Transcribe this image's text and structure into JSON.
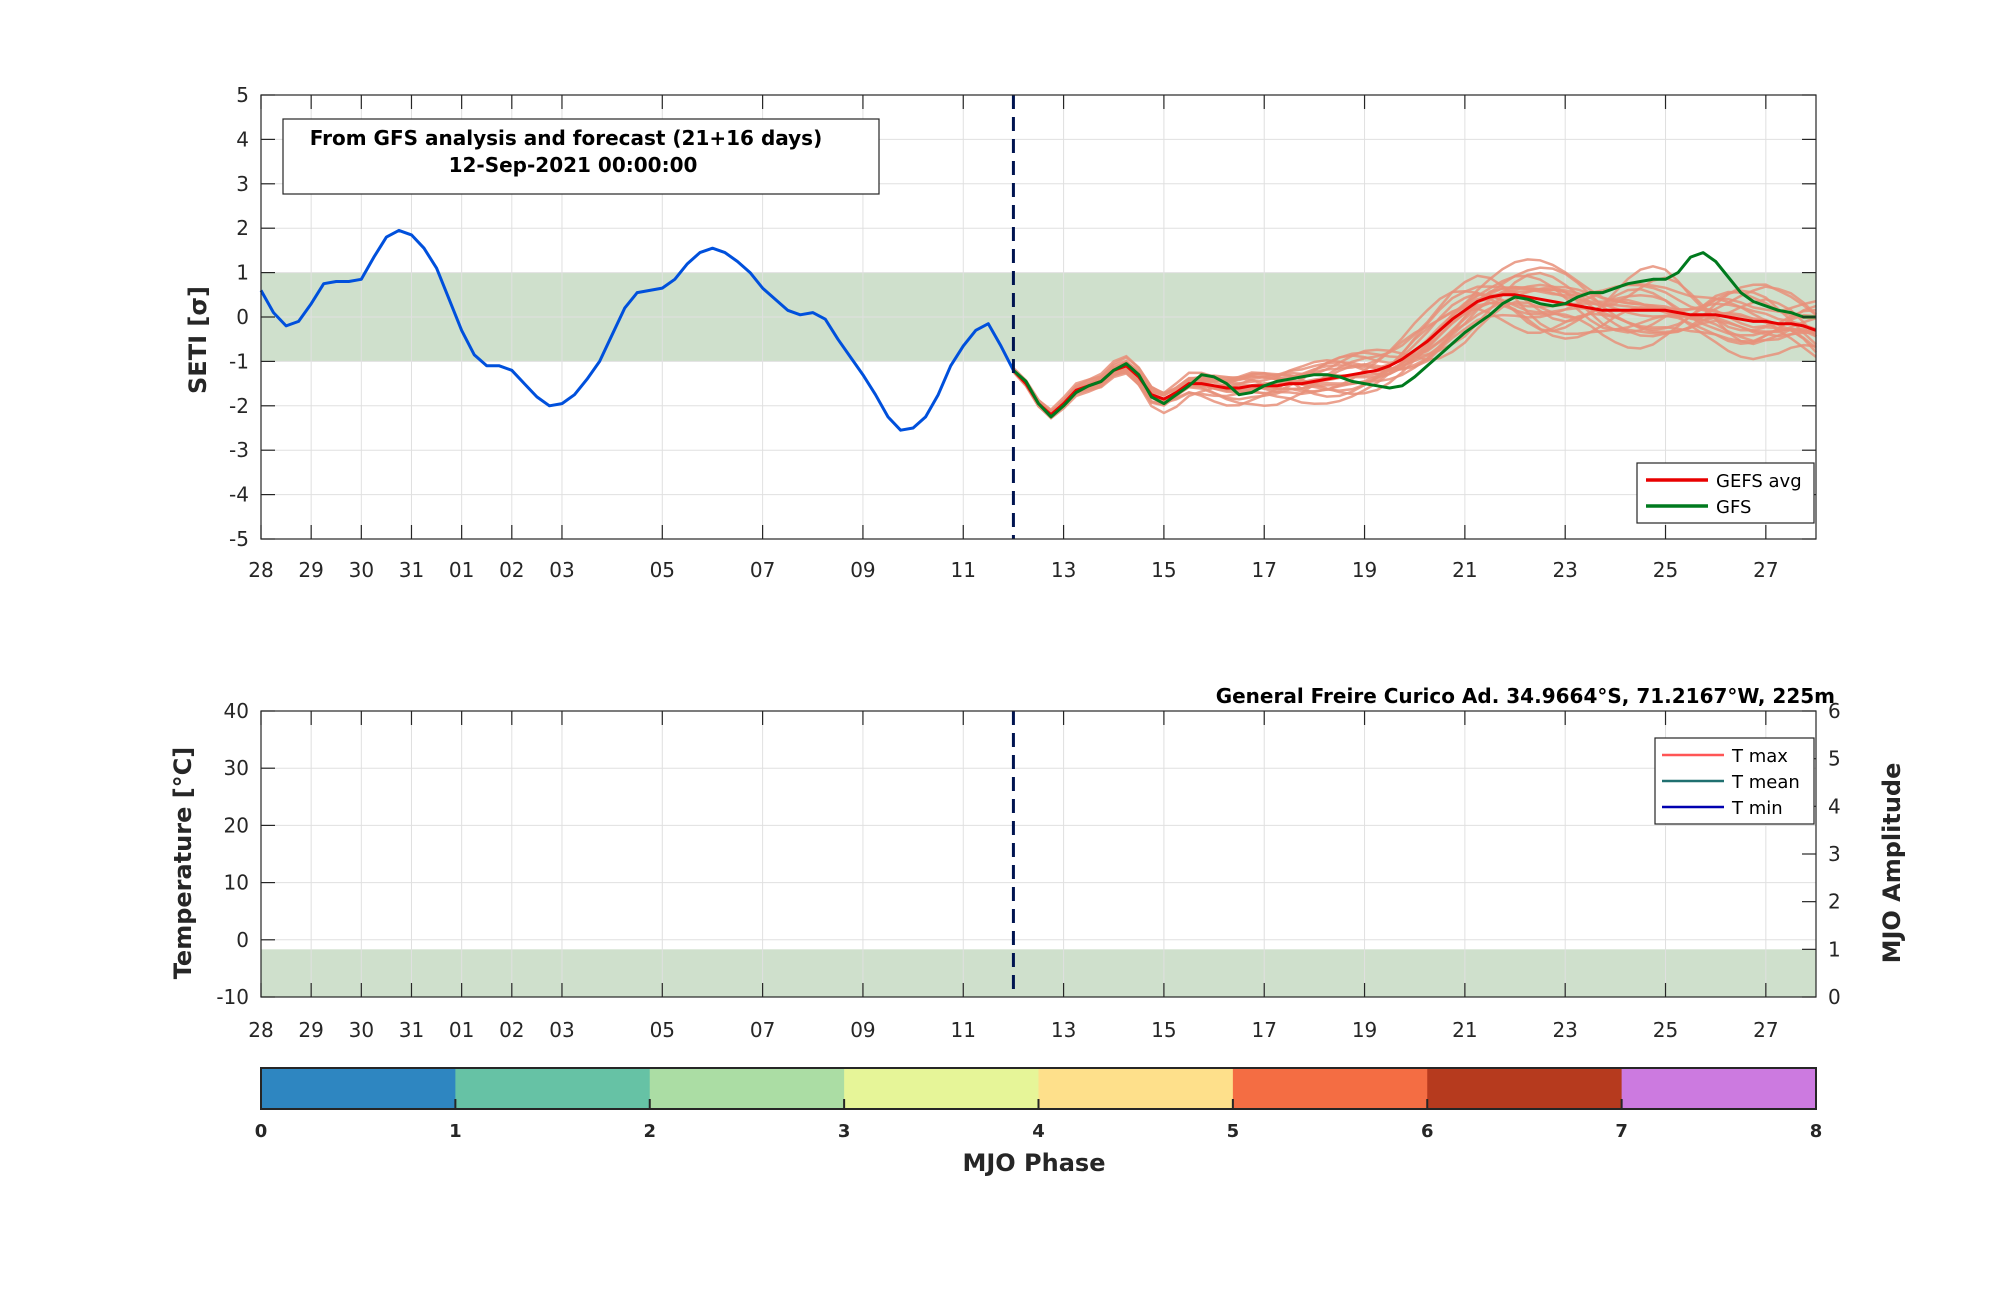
{
  "info_box": {
    "line1": "From GFS analysis and forecast (21+16 days)",
    "line2": "12-Sep-2021 00:00:00"
  },
  "station_title": "General Freire Curico Ad. 34.9664°S, 71.2167°W, 225m",
  "colors": {
    "analysis": "#0050dc",
    "gfs": "#007a1e",
    "gefs_avg": "#e80000",
    "ensemble": "#e8917a",
    "band": "#cfe0cc",
    "cutoff": "#001450",
    "tmax": "#ff5555",
    "tmean": "#207070",
    "tmin": "#0000b0"
  },
  "chart_data": [
    {
      "type": "line",
      "ylabel": "SETI [σ]",
      "ylim": [
        -5,
        5
      ],
      "yticks": [
        -5,
        -4,
        -3,
        -2,
        -1,
        0,
        1,
        2,
        3,
        4,
        5
      ],
      "xlim": [
        0,
        31
      ],
      "xticks": [
        {
          "x": 0,
          "label": "28"
        },
        {
          "x": 1,
          "label": "29"
        },
        {
          "x": 2,
          "label": "30"
        },
        {
          "x": 3,
          "label": "31"
        },
        {
          "x": 4,
          "label": "01"
        },
        {
          "x": 5,
          "label": "02"
        },
        {
          "x": 6,
          "label": "03"
        },
        {
          "x": 8,
          "label": "05"
        },
        {
          "x": 10,
          "label": "07"
        },
        {
          "x": 12,
          "label": "09"
        },
        {
          "x": 14,
          "label": "11"
        },
        {
          "x": 16,
          "label": "13"
        },
        {
          "x": 18,
          "label": "15"
        },
        {
          "x": 20,
          "label": "17"
        },
        {
          "x": 22,
          "label": "19"
        },
        {
          "x": 24,
          "label": "21"
        },
        {
          "x": 26,
          "label": "23"
        },
        {
          "x": 28,
          "label": "25"
        },
        {
          "x": 30,
          "label": "27"
        }
      ],
      "grid": true,
      "band": [
        -1,
        1
      ],
      "forecast_start_x": 15,
      "legend": {
        "position": "lower-right",
        "entries": [
          "GEFS avg",
          "GFS"
        ]
      },
      "series": [
        {
          "name": "",
          "role": "analysis",
          "x": [
            0,
            0.25,
            0.5,
            0.75,
            1,
            1.25,
            1.5,
            1.75,
            2,
            2.25,
            2.5,
            2.75,
            3,
            3.25,
            3.5,
            3.75,
            4,
            4.25,
            4.5,
            4.75,
            5,
            5.25,
            5.5,
            5.75,
            6,
            6.25,
            6.5,
            6.75,
            7,
            7.25,
            7.5,
            7.75,
            8,
            8.25,
            8.5,
            8.75,
            9,
            9.25,
            9.5,
            9.75,
            10,
            10.25,
            10.5,
            10.75,
            11,
            11.25,
            11.5,
            11.75,
            12,
            12.25,
            12.5,
            12.75,
            13,
            13.25,
            13.5,
            13.75,
            14,
            14.25,
            14.5,
            14.75,
            15
          ],
          "y": [
            0.6,
            0.1,
            -0.2,
            -0.1,
            0.3,
            0.75,
            0.8,
            0.8,
            0.85,
            1.35,
            1.8,
            1.95,
            1.85,
            1.55,
            1.1,
            0.4,
            -0.3,
            -0.85,
            -1.1,
            -1.1,
            -1.2,
            -1.5,
            -1.8,
            -2.0,
            -1.95,
            -1.75,
            -1.4,
            -1.0,
            -0.4,
            0.2,
            0.55,
            0.6,
            0.65,
            0.85,
            1.2,
            1.45,
            1.55,
            1.45,
            1.25,
            1.0,
            0.65,
            0.4,
            0.15,
            0.05,
            0.1,
            -0.05,
            -0.5,
            -0.9,
            -1.3,
            -1.75,
            -2.25,
            -2.55,
            -2.5,
            -2.25,
            -1.75,
            -1.1,
            -0.65,
            -0.3,
            -0.15,
            -0.65,
            -1.2
          ]
        },
        {
          "name": "GFS",
          "role": "gfs",
          "x": [
            15,
            15.25,
            15.5,
            15.75,
            16,
            16.25,
            16.5,
            16.75,
            17,
            17.25,
            17.5,
            17.75,
            18,
            18.25,
            18.5,
            18.75,
            19,
            19.25,
            19.5,
            19.75,
            20,
            20.25,
            20.5,
            20.75,
            21,
            21.25,
            21.5,
            21.75,
            22,
            22.25,
            22.5,
            22.75,
            23,
            23.25,
            23.5,
            23.75,
            24,
            24.25,
            24.5,
            24.75,
            25,
            25.25,
            25.5,
            25.75,
            26,
            26.25,
            26.5,
            26.75,
            27,
            27.25,
            27.5,
            27.75,
            28,
            28.25,
            28.5,
            28.75,
            29,
            29.25,
            29.5,
            29.75,
            30,
            30.25,
            30.5,
            30.75,
            31
          ],
          "y": [
            -1.2,
            -1.45,
            -1.95,
            -2.25,
            -2.0,
            -1.7,
            -1.55,
            -1.45,
            -1.2,
            -1.05,
            -1.3,
            -1.8,
            -1.95,
            -1.75,
            -1.55,
            -1.3,
            -1.35,
            -1.5,
            -1.75,
            -1.7,
            -1.55,
            -1.45,
            -1.4,
            -1.35,
            -1.3,
            -1.3,
            -1.35,
            -1.45,
            -1.5,
            -1.55,
            -1.6,
            -1.55,
            -1.35,
            -1.1,
            -0.85,
            -0.6,
            -0.35,
            -0.15,
            0.05,
            0.3,
            0.45,
            0.4,
            0.3,
            0.25,
            0.3,
            0.45,
            0.55,
            0.55,
            0.65,
            0.75,
            0.8,
            0.85,
            0.85,
            1.0,
            1.35,
            1.45,
            1.25,
            0.9,
            0.55,
            0.35,
            0.25,
            0.15,
            0.1,
            0.0,
            0.0
          ]
        },
        {
          "name": "GEFS avg",
          "role": "gefs_avg",
          "x": [
            15,
            15.25,
            15.5,
            15.75,
            16,
            16.25,
            16.5,
            16.75,
            17,
            17.25,
            17.5,
            17.75,
            18,
            18.25,
            18.5,
            18.75,
            19,
            19.25,
            19.5,
            19.75,
            20,
            20.25,
            20.5,
            20.75,
            21,
            21.25,
            21.5,
            21.75,
            22,
            22.25,
            22.5,
            22.75,
            23,
            23.25,
            23.5,
            23.75,
            24,
            24.25,
            24.5,
            24.75,
            25,
            25.25,
            25.5,
            25.75,
            26,
            26.25,
            26.5,
            26.75,
            27,
            27.25,
            27.5,
            27.75,
            28,
            28.25,
            28.5,
            28.75,
            29,
            29.25,
            29.5,
            29.75,
            30,
            30.25,
            30.5,
            30.75,
            31
          ],
          "y": [
            -1.2,
            -1.5,
            -1.95,
            -2.2,
            -1.95,
            -1.65,
            -1.55,
            -1.45,
            -1.2,
            -1.1,
            -1.35,
            -1.75,
            -1.85,
            -1.7,
            -1.5,
            -1.5,
            -1.55,
            -1.6,
            -1.6,
            -1.55,
            -1.55,
            -1.55,
            -1.5,
            -1.5,
            -1.45,
            -1.4,
            -1.35,
            -1.3,
            -1.25,
            -1.2,
            -1.1,
            -0.95,
            -0.75,
            -0.55,
            -0.3,
            -0.05,
            0.15,
            0.35,
            0.45,
            0.5,
            0.5,
            0.45,
            0.4,
            0.35,
            0.3,
            0.25,
            0.2,
            0.15,
            0.15,
            0.15,
            0.15,
            0.15,
            0.15,
            0.1,
            0.05,
            0.05,
            0.05,
            0.0,
            -0.05,
            -0.1,
            -0.1,
            -0.15,
            -0.15,
            -0.2,
            -0.3
          ]
        }
      ]
    },
    {
      "type": "line",
      "ylabel": "Temperature [°C]",
      "ylim": [
        -10,
        40
      ],
      "yticks": [
        -10,
        0,
        10,
        20,
        30,
        40
      ],
      "y2label": "MJO Amplitude",
      "y2lim": [
        0,
        6
      ],
      "y2ticks": [
        0,
        1,
        2,
        3,
        4,
        5,
        6
      ],
      "xlim": [
        0,
        31
      ],
      "xticks": [
        {
          "x": 0,
          "label": "28"
        },
        {
          "x": 1,
          "label": "29"
        },
        {
          "x": 2,
          "label": "30"
        },
        {
          "x": 3,
          "label": "31"
        },
        {
          "x": 4,
          "label": "01"
        },
        {
          "x": 5,
          "label": "02"
        },
        {
          "x": 6,
          "label": "03"
        },
        {
          "x": 8,
          "label": "05"
        },
        {
          "x": 10,
          "label": "07"
        },
        {
          "x": 12,
          "label": "09"
        },
        {
          "x": 14,
          "label": "11"
        },
        {
          "x": 16,
          "label": "13"
        },
        {
          "x": 18,
          "label": "15"
        },
        {
          "x": 20,
          "label": "17"
        },
        {
          "x": 22,
          "label": "19"
        },
        {
          "x": 24,
          "label": "21"
        },
        {
          "x": 26,
          "label": "23"
        },
        {
          "x": 28,
          "label": "25"
        },
        {
          "x": 30,
          "label": "27"
        }
      ],
      "grid": true,
      "band_y2": [
        0,
        1
      ],
      "forecast_start_x": 15,
      "legend": {
        "position": "top-right",
        "entries": [
          "T max",
          "T mean",
          "T min"
        ]
      }
    },
    {
      "type": "colorbar",
      "xlabel": "MJO Phase",
      "ticks": [
        0,
        1,
        2,
        3,
        4,
        5,
        6,
        7,
        8
      ],
      "colors": [
        "#2e86c1",
        "#66c2a5",
        "#abdda4",
        "#e6f598",
        "#fee08b",
        "#f46d43",
        "#b63a1e",
        "#cc7ae0"
      ]
    }
  ]
}
